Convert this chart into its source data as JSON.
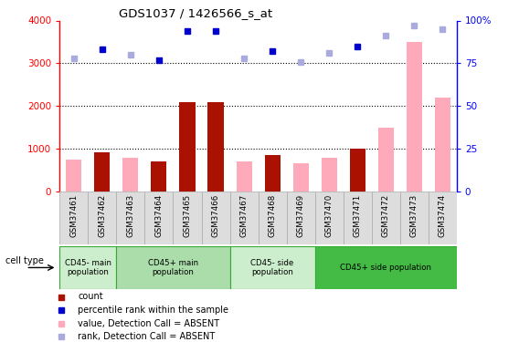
{
  "title": "GDS1037 / 1426566_s_at",
  "samples": [
    "GSM37461",
    "GSM37462",
    "GSM37463",
    "GSM37464",
    "GSM37465",
    "GSM37466",
    "GSM37467",
    "GSM37468",
    "GSM37469",
    "GSM37470",
    "GSM37471",
    "GSM37472",
    "GSM37473",
    "GSM37474"
  ],
  "count_values": [
    0,
    920,
    0,
    700,
    2100,
    2090,
    0,
    850,
    0,
    0,
    1000,
    0,
    0,
    0
  ],
  "absent_value": [
    750,
    0,
    800,
    0,
    0,
    0,
    700,
    0,
    660,
    800,
    0,
    1500,
    3500,
    2200
  ],
  "percentile_rank": [
    0,
    83,
    0,
    77,
    94,
    94,
    0,
    82,
    0,
    0,
    85,
    0,
    0,
    0
  ],
  "rank_absent": [
    78,
    0,
    80,
    0,
    0,
    0,
    78,
    0,
    76,
    81,
    0,
    91,
    97,
    95
  ],
  "ylim_left": [
    0,
    4000
  ],
  "ylim_right": [
    0,
    100
  ],
  "yticks_left": [
    0,
    1000,
    2000,
    3000,
    4000
  ],
  "yticks_right": [
    0,
    25,
    50,
    75,
    100
  ],
  "dark_red": "#aa1100",
  "light_pink": "#ffaabb",
  "dark_blue": "#0000cc",
  "light_blue": "#aaaadd",
  "groups": [
    {
      "label": "CD45- main\npopulation",
      "start": 0,
      "end": 1,
      "color": "#cceecc"
    },
    {
      "label": "CD45+ main\npopulation",
      "start": 2,
      "end": 5,
      "color": "#aaddaa"
    },
    {
      "label": "CD45- side\npopulation",
      "start": 6,
      "end": 8,
      "color": "#cceecc"
    },
    {
      "label": "CD45+ side population",
      "start": 9,
      "end": 13,
      "color": "#44bb44"
    }
  ]
}
